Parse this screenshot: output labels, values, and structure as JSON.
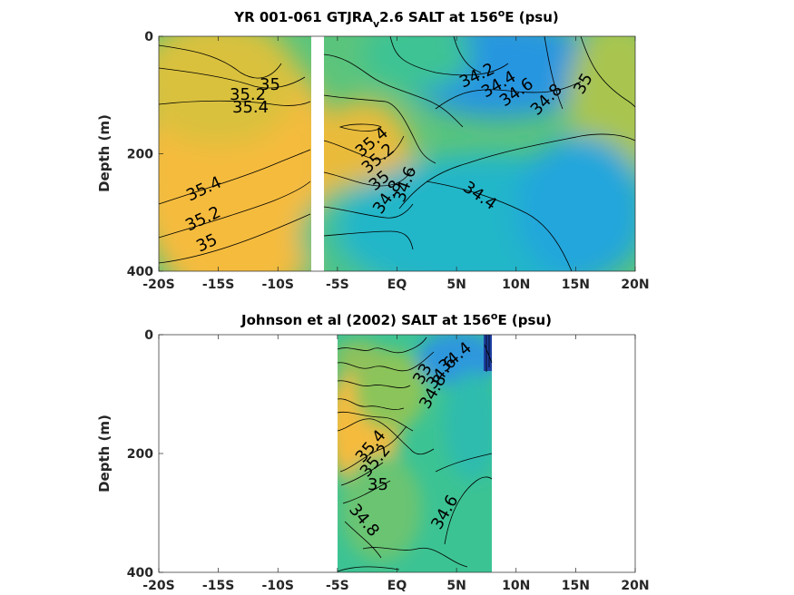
{
  "chart_data": [
    {
      "type": "heatmap",
      "title_main": "YR 001-061 GTJRA",
      "title_sub": "v",
      "title_rest": "2.6 SALT at 156",
      "title_sup": "o",
      "title_end": "E (psu)",
      "ylabel": "Depth (m)",
      "x_ticks": [
        "-20S",
        "-15S",
        "-10S",
        "-5S",
        "EQ",
        "5N",
        "10N",
        "15N",
        "20N"
      ],
      "y_ticks": [
        "0",
        "200",
        "400"
      ],
      "xlim": [
        -20,
        20
      ],
      "ylim": [
        0,
        400
      ],
      "gap": [
        -7.5,
        -6.5
      ],
      "contour_labels": [
        "35",
        "35.2",
        "35.4",
        "35.4",
        "35.2",
        "35",
        "35.4",
        "35.2",
        "35",
        "34.8",
        "34.6",
        "34.4",
        "34.2",
        "34.4",
        "34.6",
        "34.8",
        "35"
      ]
    },
    {
      "type": "heatmap",
      "title_main": "Johnson et al (2002) SALT at 156",
      "title_sup": "o",
      "title_end": "E (psu)",
      "ylabel": "Depth (m)",
      "x_ticks": [
        "-20S",
        "-15S",
        "-10S",
        "-5S",
        "EQ",
        "5N",
        "10N",
        "15N",
        "20N"
      ],
      "y_ticks": [
        "0",
        "200",
        "400"
      ],
      "xlim": [
        -20,
        20
      ],
      "ylim": [
        0,
        400
      ],
      "data_xrange": [
        -5,
        8
      ],
      "contour_labels": [
        "35.4",
        "35.2",
        "35",
        "34.8",
        "34.4",
        "34.6",
        "34.8",
        "34.6",
        "33"
      ]
    }
  ],
  "colors": {
    "high": "#f7be3a",
    "mid": "#3cc394",
    "low": "#2d97dd",
    "very_low": "#1d3fa0",
    "contour": "#000000"
  }
}
